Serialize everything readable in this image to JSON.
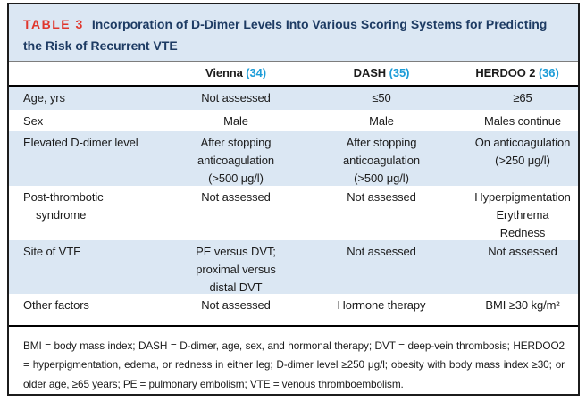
{
  "colors": {
    "red": "#e0362c",
    "navy": "#1d3b63",
    "ref": "#1b9cd8",
    "shade": "#dbe7f3",
    "border": "#1c1c1c",
    "text": "#1b1b1b"
  },
  "table": {
    "label": "TABLE 3",
    "title": "Incorporation of D-Dimer Levels Into Various Scoring Systems for Predicting the Risk of Recurrent VTE",
    "columns": [
      {
        "name": "Vienna",
        "ref": "(34)"
      },
      {
        "name": "DASH",
        "ref": "(35)"
      },
      {
        "name": "HERDOO 2",
        "ref": "(36)"
      }
    ],
    "rows": [
      {
        "label": "Age, yrs",
        "cells": [
          "Not assessed",
          "≤50",
          "≥65"
        ]
      },
      {
        "label": "Sex",
        "cells": [
          "Male",
          "Male",
          "Males continue"
        ]
      },
      {
        "label": "Elevated D-dimer level",
        "cells": [
          "After stopping\nanticoagulation\n(>500 μg/l)",
          "After stopping\nanticoagulation\n(>500 μg/l)",
          "On anticoagulation\n(>250 μg/l)"
        ]
      },
      {
        "label": "Post-thrombotic\nsyndrome",
        "cells": [
          "Not assessed",
          "Not assessed",
          "Hyperpigmentation\nErythrema\nRedness"
        ]
      },
      {
        "label": "Site of VTE",
        "cells": [
          "PE versus DVT;\nproximal versus\ndistal DVT",
          "Not assessed",
          "Not assessed"
        ]
      },
      {
        "label": "Other factors",
        "cells": [
          "Not assessed",
          "Hormone therapy",
          "BMI ≥30 kg/m²"
        ]
      }
    ],
    "footnote": "BMI = body mass index; DASH = D-dimer, age, sex, and hormonal therapy; DVT = deep-vein thrombosis; HERDOO2 = hyperpigmentation, edema, or redness in either leg; D-dimer level ≥250 μg/l; obesity with body mass index ≥30; or older age, ≥65 years; PE = pulmonary embolism; VTE = venous thromboembolism."
  }
}
